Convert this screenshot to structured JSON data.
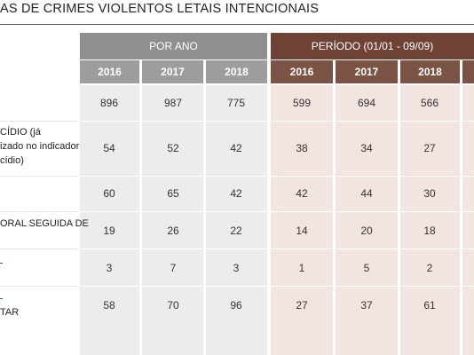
{
  "title": "AS DE CRIMES VIOLENTOS LETAIS INTENCIONAIS",
  "groups": {
    "por_ano": "POR ANO",
    "periodo": "PERÍODO (01/01 - 09/09)"
  },
  "years": [
    "2016",
    "2017",
    "2018",
    "2016",
    "2017",
    "2018"
  ],
  "rows": [
    {
      "label": "",
      "values": [
        "896",
        "987",
        "775",
        "599",
        "694",
        "566"
      ]
    },
    {
      "label1": "CÍDIO (já",
      "label2": "izado no indicador",
      "label3": "cídio)",
      "values": [
        "54",
        "52",
        "42",
        "38",
        "34",
        "27"
      ]
    },
    {
      "label": "",
      "values": [
        "60",
        "65",
        "42",
        "42",
        "44",
        "30"
      ]
    },
    {
      "label": "ORAL SEGUIDA DE",
      "values": [
        "19",
        "26",
        "22",
        "14",
        "20",
        "18"
      ]
    },
    {
      "label": "",
      "values": [
        "3",
        "7",
        "3",
        "1",
        "5",
        "2"
      ]
    },
    {
      "label": "TAR",
      "values": [
        "58",
        "70",
        "96",
        "27",
        "37",
        "61"
      ]
    }
  ],
  "colors": {
    "gray_header": "#8f8f8f",
    "brown_header": "#6e4335",
    "gray_body": "#ececec",
    "pink_body": "#f2e4e0"
  }
}
